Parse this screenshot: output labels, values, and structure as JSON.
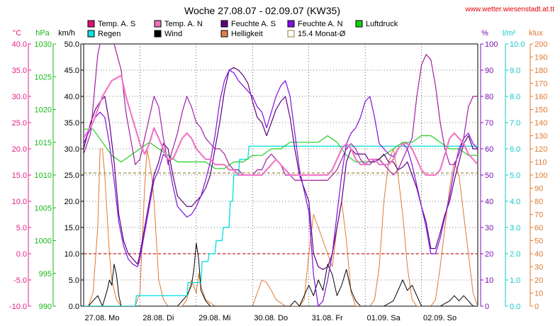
{
  "chart_data": {
    "type": "line",
    "title": "Woche 27.08.07 - 02.09.07 (KW35)",
    "source": "www.wetter.wiesenstadt.at.tt",
    "x_labels": [
      "27.08. Mo",
      "28.08. Di",
      "29.08. Mi",
      "30.08. Do",
      "31.08. Fr",
      "01.09. Sa",
      "02.09. So"
    ],
    "x_range_hours": [
      0,
      168
    ],
    "axes": [
      {
        "id": "temp",
        "unit": "°C",
        "side": "left",
        "min": -10,
        "max": 40,
        "step": 5,
        "color": "#e0208a",
        "decimals": 1
      },
      {
        "id": "pressure",
        "unit": "hPa",
        "side": "left",
        "min": 990,
        "max": 1030,
        "step": 5,
        "color": "#18b818",
        "decimals": 0
      },
      {
        "id": "wind",
        "unit": "km/h",
        "side": "left",
        "min": 0,
        "max": 50,
        "step": 5,
        "color": "#000000",
        "decimals": 1
      },
      {
        "id": "humidity",
        "unit": "%",
        "side": "right",
        "min": 0,
        "max": 100,
        "step": 10,
        "color": "#7a10b0",
        "decimals": 0
      },
      {
        "id": "rain",
        "unit": "l/m²",
        "side": "right",
        "min": 0,
        "max": 10,
        "step": 1,
        "color": "#10c8c8",
        "decimals": 1
      },
      {
        "id": "light",
        "unit": "klux",
        "side": "right",
        "min": 0,
        "max": 200,
        "step": 10,
        "color": "#e07830",
        "decimals": 0
      }
    ],
    "legend": [
      {
        "label": "Temp. A. S",
        "color": "#e0107a",
        "style": "filled"
      },
      {
        "label": "Temp. A. N",
        "color": "#f070c0",
        "style": "filled"
      },
      {
        "label": "Feuchte A. S",
        "color": "#600080",
        "style": "filled"
      },
      {
        "label": "Feuchte A. N",
        "color": "#8010e0",
        "style": "filled"
      },
      {
        "label": "Luftdruck",
        "color": "#10d010",
        "style": "filled"
      },
      {
        "label": "Regen",
        "color": "#10e0e0",
        "style": "filled"
      },
      {
        "label": "Wind",
        "color": "#000000",
        "style": "filled"
      },
      {
        "label": "Helligkeit",
        "color": "#e08050",
        "style": "filled"
      },
      {
        "label": "15.4 Monat-Ø",
        "color": "#908030",
        "style": "outline"
      }
    ],
    "reference_lines": [
      {
        "name": "15.4 Monat-Ø",
        "axis": "temp",
        "value": 15.4,
        "color": "#908030"
      },
      {
        "name": "freezing",
        "axis": "temp",
        "value": 0,
        "color": "#cc2020"
      }
    ],
    "series": [
      {
        "name": "Temp. A. S",
        "axis": "temp",
        "color": "#a020a0",
        "width": 1.2,
        "x": [
          0,
          3,
          6,
          8,
          10,
          13,
          16,
          18,
          20,
          22,
          24,
          26,
          28,
          30,
          32,
          34,
          36,
          38,
          40,
          42,
          44,
          46,
          48,
          50,
          52,
          54,
          56,
          58,
          60,
          62,
          64,
          66,
          68,
          70,
          72,
          74,
          76,
          78,
          80,
          82,
          84,
          86,
          88,
          90,
          92,
          96,
          100,
          104,
          106,
          108,
          110,
          112,
          114,
          116,
          118,
          120,
          122,
          124,
          126,
          128,
          130,
          132,
          134,
          136,
          138,
          140,
          142,
          144,
          146,
          148,
          150,
          152,
          154,
          156,
          158,
          160,
          162,
          164,
          166,
          168
        ],
        "y": [
          19,
          23,
          38,
          42,
          43,
          40,
          35,
          27,
          22,
          17,
          18,
          22,
          26,
          30,
          28,
          22,
          17,
          20,
          23,
          27,
          30,
          28,
          25,
          24,
          22,
          21,
          20,
          20,
          19,
          17,
          16,
          16,
          15,
          15,
          15,
          16,
          16,
          18,
          19,
          18,
          17,
          15,
          15,
          14,
          14,
          14,
          14,
          14,
          15,
          16,
          18,
          20,
          21,
          20,
          18,
          17,
          17,
          18,
          18,
          17,
          16,
          15,
          16,
          18,
          20,
          22,
          30,
          36,
          38,
          37,
          32,
          25,
          20,
          17,
          17,
          19,
          22,
          28,
          30,
          30
        ]
      },
      {
        "name": "Temp. A. N",
        "axis": "temp",
        "color": "#f078c8",
        "width": 2.2,
        "x": [
          0,
          4,
          8,
          12,
          16,
          18,
          20,
          22,
          24,
          26,
          28,
          30,
          32,
          34,
          36,
          38,
          40,
          42,
          44,
          46,
          48,
          50,
          52,
          54,
          56,
          58,
          60,
          62,
          64,
          66,
          68,
          70,
          72,
          74,
          76,
          78,
          80,
          82,
          84,
          86,
          88,
          90,
          92,
          96,
          100,
          104,
          106,
          108,
          110,
          112,
          114,
          116,
          118,
          120,
          122,
          124,
          126,
          128,
          130,
          132,
          134,
          136,
          138,
          140,
          142,
          144,
          146,
          148,
          150,
          152,
          154,
          156,
          158,
          160,
          162,
          164,
          166,
          168
        ],
        "y": [
          22,
          25,
          30,
          33,
          34,
          30,
          27,
          24,
          21,
          19,
          21,
          24,
          22,
          20,
          18,
          18,
          20,
          22,
          23,
          22,
          20,
          19,
          18,
          18,
          17,
          17,
          17,
          16,
          16,
          15,
          15,
          15,
          15,
          15,
          15,
          16,
          17,
          18,
          17,
          16,
          15,
          15,
          15,
          15,
          15,
          15,
          16,
          18,
          20,
          21,
          20,
          18,
          17,
          17,
          18,
          18,
          17,
          17,
          17,
          18,
          20,
          21,
          21,
          20,
          18,
          16,
          15,
          15,
          15,
          16,
          19,
          22,
          23,
          22,
          21,
          19,
          18,
          17
        ]
      },
      {
        "name": "Feuchte A. S",
        "axis": "humidity",
        "color": "#600080",
        "width": 1.2,
        "x": [
          0,
          3,
          5,
          7,
          9,
          11,
          13,
          15,
          17,
          19,
          21,
          23,
          24,
          26,
          28,
          30,
          32,
          34,
          36,
          38,
          40,
          42,
          44,
          46,
          48,
          50,
          52,
          54,
          56,
          58,
          60,
          62,
          64,
          66,
          68,
          70,
          72,
          74,
          76,
          78,
          80,
          82,
          84,
          86,
          88,
          90,
          92,
          94,
          96,
          98,
          100,
          102,
          104,
          106,
          108,
          110,
          112,
          114,
          116,
          118,
          120,
          122,
          124,
          126,
          128,
          130,
          132,
          134,
          136,
          138,
          140,
          142,
          144,
          146,
          148,
          150,
          152,
          154,
          156,
          158,
          160,
          162,
          164,
          166,
          168
        ],
        "y": [
          60,
          70,
          75,
          78,
          80,
          70,
          55,
          35,
          25,
          20,
          18,
          16,
          20,
          30,
          40,
          50,
          55,
          62,
          60,
          50,
          42,
          40,
          38,
          38,
          40,
          42,
          45,
          50,
          60,
          70,
          82,
          90,
          91,
          90,
          88,
          85,
          78,
          72,
          70,
          65,
          70,
          75,
          78,
          80,
          72,
          60,
          50,
          45,
          40,
          20,
          15,
          14,
          15,
          20,
          30,
          40,
          55,
          60,
          58,
          58,
          58,
          55,
          55,
          56,
          58,
          55,
          55,
          52,
          53,
          55,
          50,
          45,
          38,
          32,
          22,
          22,
          28,
          35,
          40,
          48,
          55,
          62,
          65,
          60,
          60
        ]
      },
      {
        "name": "Feuchte A. N",
        "axis": "humidity",
        "color": "#8010e0",
        "width": 1.2,
        "x": [
          0,
          3,
          5,
          7,
          9,
          11,
          13,
          15,
          17,
          19,
          21,
          23,
          24,
          26,
          28,
          30,
          32,
          34,
          36,
          38,
          40,
          42,
          44,
          46,
          48,
          50,
          52,
          54,
          56,
          58,
          60,
          62,
          64,
          66,
          68,
          70,
          72,
          74,
          76,
          78,
          80,
          82,
          84,
          86,
          88,
          90,
          92,
          94,
          96,
          98,
          100,
          102,
          104,
          106,
          108,
          110,
          112,
          114,
          116,
          118,
          120,
          122,
          124,
          126,
          128,
          130,
          132,
          134,
          136,
          138,
          140,
          142,
          144,
          146,
          148,
          150,
          152,
          154,
          156,
          158,
          160,
          162,
          164,
          166,
          168
        ],
        "y": [
          62,
          68,
          72,
          74,
          72,
          62,
          48,
          32,
          23,
          18,
          16,
          15,
          18,
          28,
          38,
          48,
          52,
          58,
          56,
          46,
          38,
          36,
          34,
          35,
          38,
          42,
          48,
          55,
          65,
          78,
          86,
          90,
          89,
          86,
          84,
          82,
          80,
          76,
          74,
          68,
          74,
          80,
          84,
          86,
          80,
          66,
          52,
          44,
          36,
          12,
          0,
          2,
          10,
          20,
          35,
          50,
          62,
          66,
          68,
          72,
          78,
          80,
          72,
          62,
          60,
          58,
          57,
          60,
          62,
          60,
          54,
          46,
          38,
          30,
          20,
          20,
          26,
          34,
          42,
          52,
          60,
          64,
          66,
          62,
          60
        ]
      },
      {
        "name": "Luftdruck",
        "axis": "pressure",
        "color": "#20d020",
        "width": 1.2,
        "x": [
          0,
          4,
          8,
          12,
          16,
          20,
          24,
          28,
          32,
          36,
          40,
          44,
          48,
          52,
          56,
          60,
          64,
          68,
          72,
          76,
          80,
          84,
          88,
          92,
          96,
          100,
          104,
          108,
          112,
          116,
          120,
          124,
          128,
          132,
          136,
          140,
          144,
          148,
          152,
          156,
          160,
          164,
          168
        ],
        "y": [
          1017,
          1017,
          1015,
          1013,
          1012,
          1013,
          1014,
          1015,
          1014,
          1013,
          1012,
          1012,
          1012,
          1012,
          1011,
          1011,
          1012,
          1012,
          1013,
          1013,
          1014,
          1014,
          1015,
          1015,
          1015,
          1015,
          1016,
          1015,
          1013,
          1012,
          1012,
          1012,
          1013,
          1014,
          1015,
          1015,
          1016,
          1016,
          1015,
          1014,
          1014,
          1013,
          1013
        ]
      },
      {
        "name": "Regen",
        "axis": "rain",
        "color": "#10e0e0",
        "width": 1.4,
        "x": [
          0,
          22,
          22.5,
          44,
          44.5,
          50,
          50.5,
          53,
          53.5,
          56,
          56.5,
          59,
          59.5,
          62,
          62.5,
          63.5,
          64,
          66,
          66.5,
          70,
          70.5,
          168
        ],
        "y": [
          0,
          0,
          0.4,
          0.4,
          0.9,
          0.9,
          1.7,
          1.7,
          2.0,
          2.0,
          2.5,
          2.5,
          3.0,
          3.0,
          4.0,
          4.0,
          5.0,
          5.0,
          5.6,
          5.6,
          6.1,
          6.1
        ]
      },
      {
        "name": "Wind",
        "axis": "wind",
        "color": "#000000",
        "width": 1.0,
        "x": [
          0,
          2,
          4,
          6,
          8,
          10,
          11,
          12,
          13,
          14,
          15,
          16,
          18,
          20,
          22,
          24,
          30,
          36,
          40,
          42,
          44,
          46,
          47,
          48,
          49,
          50,
          52,
          54,
          60,
          70,
          80,
          88,
          90,
          92,
          94,
          96,
          98,
          100,
          102,
          104,
          106,
          108,
          110,
          112,
          114,
          116,
          118,
          120,
          122,
          124,
          128,
          132,
          136,
          138,
          140,
          142,
          144,
          148,
          152,
          156,
          158,
          160,
          162,
          164,
          166,
          168
        ],
        "y": [
          0,
          0,
          1,
          2,
          0,
          3,
          5,
          4,
          8,
          6,
          2,
          0,
          0,
          0,
          0,
          0,
          0,
          0,
          0,
          1,
          2,
          4,
          7,
          12,
          9,
          3,
          1,
          0,
          0,
          0,
          0,
          0,
          1,
          0,
          2,
          4,
          2,
          5,
          3,
          8,
          6,
          2,
          4,
          7,
          3,
          1,
          0,
          0,
          0,
          0,
          0,
          1,
          5,
          3,
          4,
          2,
          0,
          0,
          0,
          1,
          2,
          1,
          2,
          1,
          0,
          0
        ]
      },
      {
        "name": "Helligkeit",
        "axis": "light",
        "color": "#e07830",
        "width": 1.0,
        "x": [
          0,
          2,
          4,
          6,
          7,
          8,
          9,
          10,
          11,
          12,
          14,
          16,
          18,
          20,
          22,
          24,
          26,
          27,
          28,
          29,
          30,
          31,
          32,
          34,
          36,
          38,
          40,
          42,
          44,
          46,
          47,
          48,
          49,
          50,
          52,
          56,
          60,
          64,
          68,
          72,
          74,
          76,
          78,
          80,
          82,
          86,
          88,
          90,
          92,
          94,
          96,
          98,
          100,
          102,
          104,
          106,
          108,
          110,
          112,
          114,
          116,
          118,
          120,
          122,
          124,
          126,
          128,
          130,
          132,
          134,
          136,
          138,
          140,
          142,
          144,
          146,
          148,
          150,
          152,
          154,
          156,
          158,
          160,
          162,
          164,
          166,
          168
        ],
        "y": [
          0,
          0,
          10,
          60,
          120,
          120,
          100,
          70,
          40,
          20,
          5,
          0,
          0,
          0,
          0,
          10,
          90,
          120,
          110,
          100,
          80,
          50,
          20,
          5,
          0,
          0,
          0,
          0,
          5,
          20,
          15,
          10,
          25,
          15,
          5,
          0,
          0,
          0,
          0,
          0,
          10,
          20,
          18,
          12,
          5,
          0,
          0,
          0,
          0,
          5,
          40,
          70,
          60,
          50,
          40,
          30,
          60,
          80,
          50,
          10,
          0,
          0,
          0,
          0,
          5,
          30,
          80,
          110,
          120,
          100,
          70,
          30,
          5,
          0,
          0,
          0,
          0,
          5,
          30,
          60,
          90,
          110,
          100,
          70,
          40,
          10,
          0
        ]
      }
    ]
  }
}
